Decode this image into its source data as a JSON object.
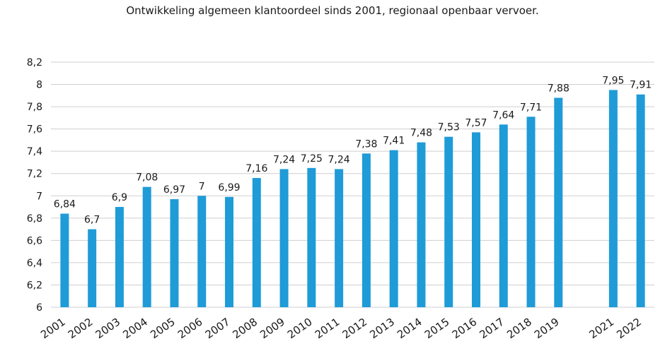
{
  "chart_data": {
    "type": "bar",
    "title": "Ontwikkeling algemeen klantoordeel sinds 2001, regionaal openbaar vervoer.",
    "categories": [
      "2001",
      "2002",
      "2003",
      "2004",
      "2005",
      "2006",
      "2007",
      "2008",
      "2009",
      "2010",
      "2011",
      "2012",
      "2013",
      "2014",
      "2015",
      "2016",
      "2017",
      "2018",
      "2019",
      "",
      "2021",
      "2022"
    ],
    "values": [
      6.84,
      6.7,
      6.9,
      7.08,
      6.97,
      7.0,
      6.99,
      7.16,
      7.24,
      7.25,
      7.24,
      7.38,
      7.41,
      7.48,
      7.53,
      7.57,
      7.64,
      7.71,
      7.88,
      null,
      7.95,
      7.91
    ],
    "data_labels": [
      "6,84",
      "6,7",
      "6,9",
      "7,08",
      "6,97",
      "7",
      "6,99",
      "7,16",
      "7,24",
      "7,25",
      "7,24",
      "7,38",
      "7,41",
      "7,48",
      "7,53",
      "7,57",
      "7,64",
      "7,71",
      "7,88",
      "",
      "7,95",
      "7,91"
    ],
    "ylim": [
      6,
      8.2
    ],
    "yticks": [
      6,
      6.2,
      6.4,
      6.6,
      6.8,
      7,
      7.2,
      7.4,
      7.6,
      7.8,
      8,
      8.2
    ],
    "ytick_labels": [
      "6",
      "6,2",
      "6,4",
      "6,6",
      "6,8",
      "7",
      "7,2",
      "7,4",
      "7,6",
      "7,8",
      "8",
      "8,2"
    ],
    "xlabel": "",
    "ylabel": "",
    "grid": true,
    "bar_color": "#1f9bd7",
    "grid_color": "#cfcfcf"
  }
}
